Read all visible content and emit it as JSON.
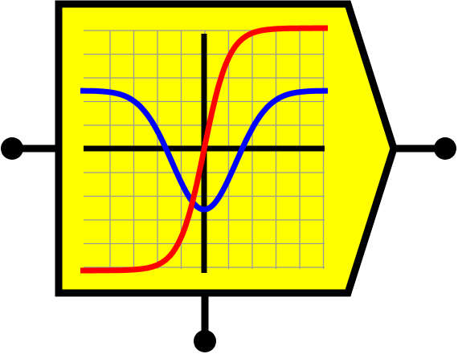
{
  "block": {
    "kind": "function-block-symbol",
    "body_color": "#ffff00",
    "outline_color": "#000000",
    "grid_color": "#999999",
    "axis_color": "#000000"
  },
  "curves": {
    "sigmoid": {
      "color": "#ff0000",
      "shape": "s-curve-rising"
    },
    "bell_inverted": {
      "color": "#0000ff",
      "shape": "inverted-bell"
    }
  },
  "ports": {
    "input_left": {
      "type": "connector-dot"
    },
    "output_right": {
      "type": "connector-dot"
    },
    "control_bottom": {
      "type": "connector-dot"
    }
  }
}
